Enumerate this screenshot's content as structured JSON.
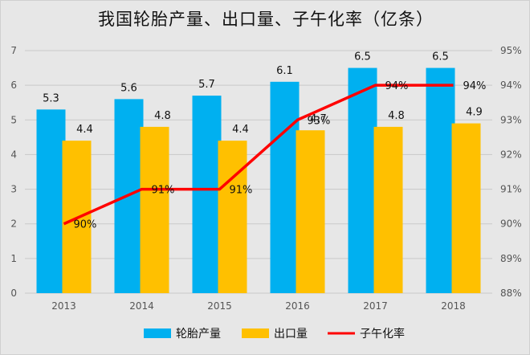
{
  "chart_data": {
    "type": "bar",
    "title": "我国轮胎产量、出口量、子午化率（亿条）",
    "categories": [
      "2013",
      "2014",
      "2015",
      "2016",
      "2017",
      "2018"
    ],
    "series": [
      {
        "name": "轮胎产量",
        "type": "bar",
        "axis": "left",
        "color": "#00b0f0",
        "values": [
          5.3,
          5.6,
          5.7,
          6.1,
          6.5,
          6.5
        ],
        "labels": [
          "5.3",
          "5.6",
          "5.7",
          "6.1",
          "6.5",
          "6.5"
        ]
      },
      {
        "name": "出口量",
        "type": "bar",
        "axis": "left",
        "color": "#ffc000",
        "values": [
          4.4,
          4.8,
          4.4,
          4.7,
          4.8,
          4.9
        ],
        "labels": [
          "4.4",
          "4.8",
          "4.4",
          "4.7",
          "4.8",
          "4.9"
        ]
      },
      {
        "name": "子午化率",
        "type": "line",
        "axis": "right",
        "color": "#ff0000",
        "values": [
          90,
          91,
          91,
          93,
          94,
          94
        ],
        "labels": [
          "90%",
          "91%",
          "91%",
          "93%",
          "94%",
          "94%"
        ]
      }
    ],
    "y_left": {
      "min": 0,
      "max": 7,
      "ticks": [
        "0",
        "1",
        "2",
        "3",
        "4",
        "5",
        "6",
        "7"
      ]
    },
    "y_right": {
      "min": 88,
      "max": 95,
      "ticks": [
        "88%",
        "89%",
        "90%",
        "91%",
        "92%",
        "93%",
        "94%",
        "95%"
      ]
    },
    "grid": true,
    "legend": "bottom",
    "background": "#e7e7e7"
  }
}
